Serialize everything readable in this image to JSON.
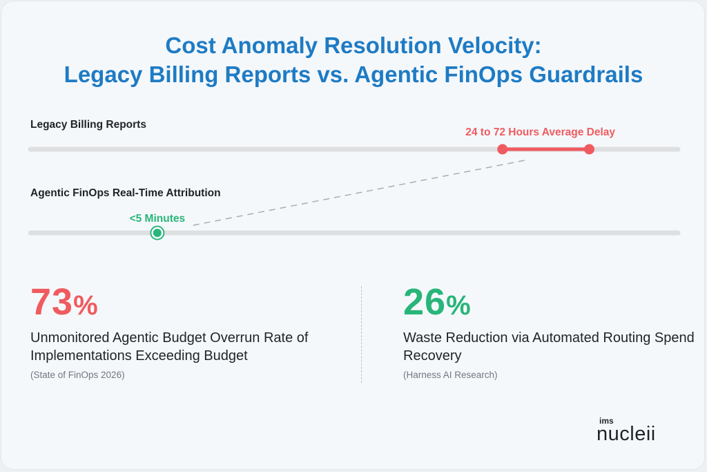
{
  "title_line1": "Cost Anomaly Resolution Velocity:",
  "title_line2": "Legacy Billing Reports vs. Agentic FinOps Guardrails",
  "colors": {
    "title": "#1e7bc4",
    "legacy": "#ef5b5f",
    "agentic": "#28b57a",
    "track": "#dedfe1"
  },
  "chart_data": {
    "type": "line",
    "tracks": [
      {
        "label": "Legacy Billing Reports",
        "annotation": "24 to 72 Hours Average Delay",
        "range": [
          0.729,
          0.863
        ],
        "color": "#ef5b5f"
      },
      {
        "label": "Agentic FinOps Real-Time Attribution",
        "annotation": "<5 Minutes",
        "point": 0.196,
        "color": "#28b57a"
      }
    ]
  },
  "stats": [
    {
      "value": "73",
      "unit": "%",
      "description": "Unmonitored Agentic Budget Overrun Rate of Implementations Exceeding Budget",
      "source": "(State of FinOps 2026)",
      "color": "#ef5b5f"
    },
    {
      "value": "26",
      "unit": "%",
      "description": "Waste Reduction via Automated Routing Spend Recovery",
      "source": "(Harness AI Research)",
      "color": "#28b57a"
    }
  ],
  "logo": {
    "small": "ims",
    "big": "nucleii"
  }
}
